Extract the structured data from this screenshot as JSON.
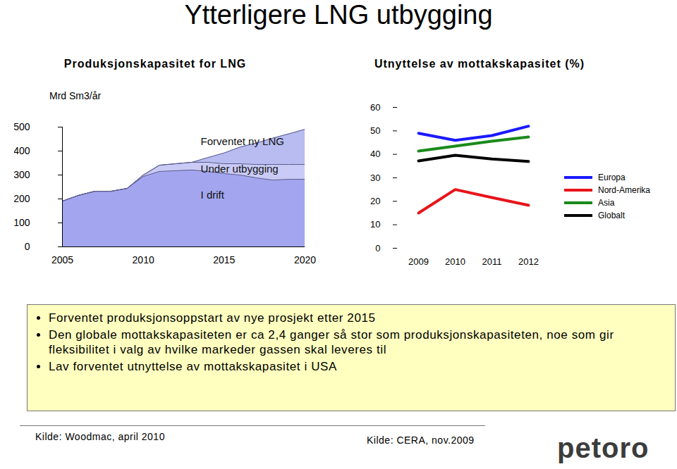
{
  "title": "Ytterligere LNG utbygging",
  "chart_data": [
    {
      "type": "area",
      "title": "Produksjonskapasitet for LNG",
      "y_label": "Mrd Sm3/år",
      "stacked": true,
      "x": [
        2005,
        2006,
        2007,
        2008,
        2009,
        2010,
        2011,
        2012,
        2013,
        2014,
        2015,
        2016,
        2017,
        2018,
        2019,
        2020
      ],
      "series": [
        {
          "name": "I drift",
          "color": "#a3a6ee",
          "values": [
            191,
            215,
            232,
            232,
            244,
            294,
            315,
            318,
            321,
            315,
            306,
            300,
            288,
            279,
            282,
            282
          ]
        },
        {
          "name": "Under utbygging",
          "color": "#c9cbf6",
          "values": [
            0,
            0,
            0,
            0,
            0,
            6,
            26,
            29,
            32,
            38,
            41,
            47,
            56,
            65,
            62,
            62
          ]
        },
        {
          "name": "Forventet ny LNG",
          "color": "#b8bcf1",
          "values": [
            0,
            0,
            0,
            0,
            0,
            0,
            0,
            0,
            0,
            20,
            45,
            70,
            90,
            110,
            128,
            147
          ]
        }
      ],
      "xlim": [
        2005,
        2020
      ],
      "xticks": [
        2005,
        2010,
        2015,
        2020
      ],
      "ylim": [
        0,
        500
      ],
      "yticks": [
        0,
        100,
        200,
        300,
        400,
        500
      ],
      "grid": false
    },
    {
      "type": "line",
      "title": "Utnyttelse av mottakskapasitet (%)",
      "legend": "right",
      "categories": [
        "2009",
        "2010",
        "2011",
        "2012"
      ],
      "series": [
        {
          "name": "Europa",
          "color": "#1a1aff",
          "values": [
            49,
            46,
            48,
            52
          ]
        },
        {
          "name": "Nord-Amerika",
          "color": "#e8141b",
          "values": [
            15,
            25,
            21.6,
            18.3
          ]
        },
        {
          "name": "Asia",
          "color": "#1a8a1a",
          "values": [
            41.4,
            43.5,
            45.6,
            47.4
          ]
        },
        {
          "name": "Globalt",
          "color": "#000000",
          "values": [
            37.2,
            39.6,
            38,
            37
          ]
        }
      ],
      "ylim": [
        0,
        60
      ],
      "yticks": [
        0,
        10,
        20,
        30,
        40,
        50,
        60
      ],
      "grid": false
    }
  ],
  "bullets": [
    "Forventet produksjonsoppstart av nye prosjekt etter 2015",
    "Den globale mottakskapasiteten er ca 2,4 ganger så stor som produksjonskapasiteten, noe som gir fleksibilitet i valg av hvilke markeder gassen skal leveres til",
    "Lav forventet utnyttelse av mottakskapasitet i USA"
  ],
  "sources": [
    "Kilde: Woodmac, april 2010",
    "Kilde: CERA, nov.2009"
  ],
  "logo": "petoro"
}
